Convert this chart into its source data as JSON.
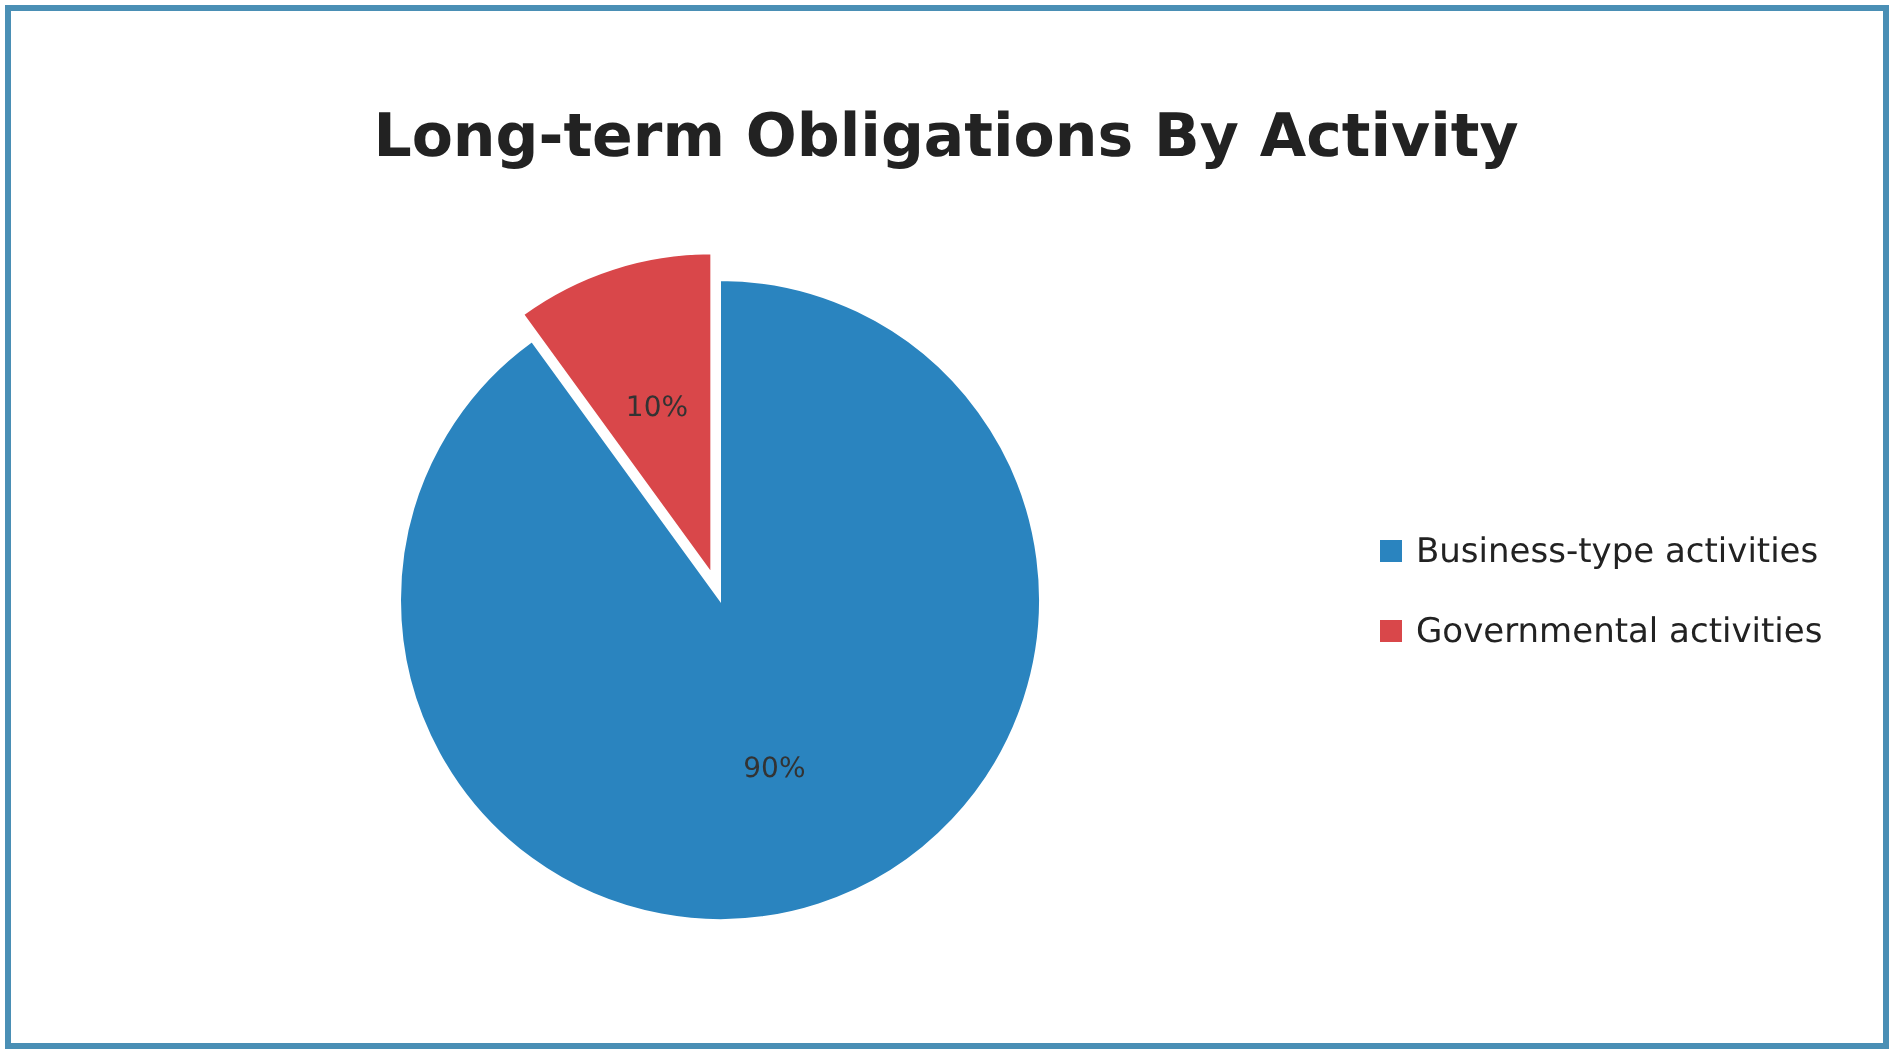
{
  "chart_data": {
    "type": "pie",
    "title": "Long-term Obligations By Activity",
    "categories": [
      "Business-type activities",
      "Governmental activities"
    ],
    "values": [
      90,
      10
    ],
    "colors": [
      "#2a84bf",
      "#d9474a"
    ],
    "value_labels": [
      "90%",
      "10%"
    ],
    "legend": "right"
  }
}
